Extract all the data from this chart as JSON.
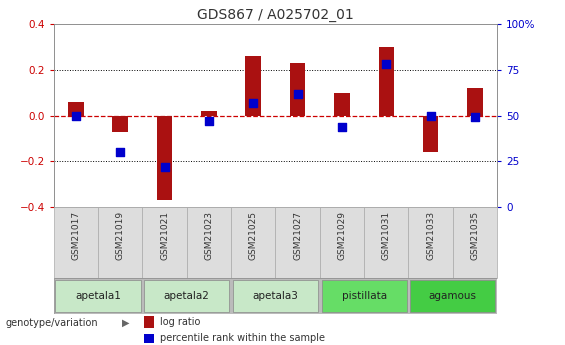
{
  "title": "GDS867 / A025702_01",
  "samples": [
    "GSM21017",
    "GSM21019",
    "GSM21021",
    "GSM21023",
    "GSM21025",
    "GSM21027",
    "GSM21029",
    "GSM21031",
    "GSM21033",
    "GSM21035"
  ],
  "log_ratio": [
    0.06,
    -0.07,
    -0.37,
    0.02,
    0.26,
    0.23,
    0.1,
    0.3,
    -0.16,
    0.12
  ],
  "percentile_rank": [
    50,
    30,
    22,
    47,
    57,
    62,
    44,
    78,
    50,
    49
  ],
  "groups": [
    {
      "name": "apetala1",
      "start": 0,
      "end": 2,
      "color": "#c8e8c8"
    },
    {
      "name": "apetala2",
      "start": 2,
      "end": 4,
      "color": "#c8e8c8"
    },
    {
      "name": "apetala3",
      "start": 4,
      "end": 6,
      "color": "#c8e8c8"
    },
    {
      "name": "pistillata",
      "start": 6,
      "end": 8,
      "color": "#66dd66"
    },
    {
      "name": "agamous",
      "start": 8,
      "end": 10,
      "color": "#44cc44"
    }
  ],
  "ylim_left": [
    -0.4,
    0.4
  ],
  "ylim_right": [
    0,
    100
  ],
  "bar_color": "#aa1111",
  "dot_color": "#0000cc",
  "zero_line_color": "#cc0000",
  "grid_color": "#000000",
  "title_color": "#333333",
  "left_tick_color": "#cc0000",
  "right_tick_color": "#0000cc",
  "bg_color": "#ffffff",
  "plot_bg_color": "#ffffff",
  "bar_width": 0.35,
  "dot_size": 40
}
